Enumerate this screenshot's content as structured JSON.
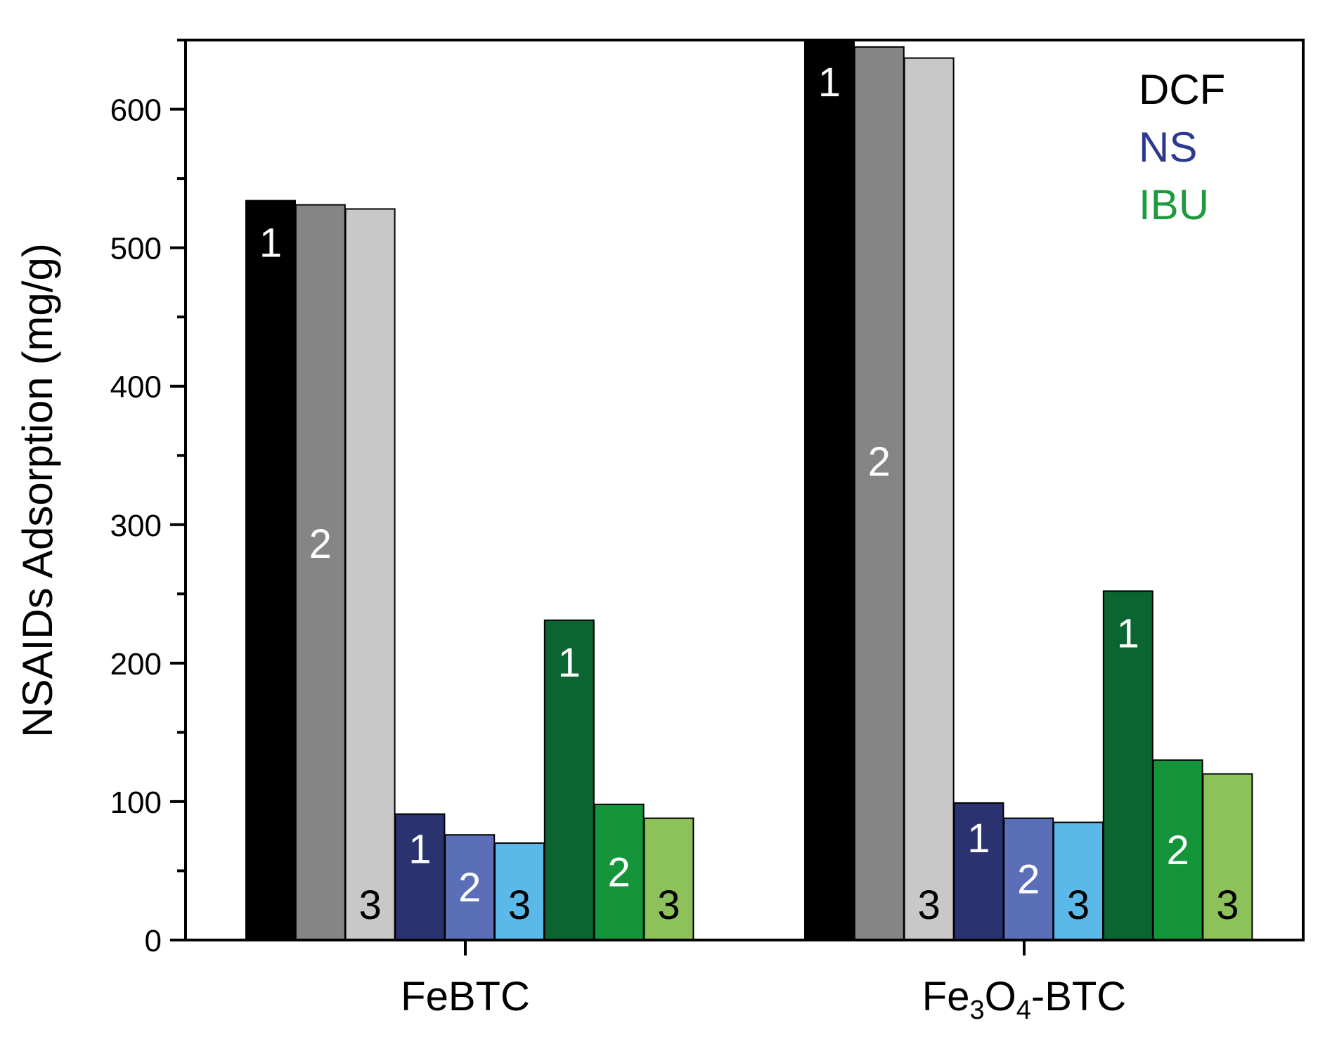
{
  "chart_data": {
    "type": "bar",
    "title": "",
    "xlabel": "",
    "ylabel": "NSAIDs Adsorption (mg/g)",
    "ylim": [
      0,
      650
    ],
    "yticks": [
      0,
      100,
      200,
      300,
      400,
      500,
      600
    ],
    "categories": [
      {
        "label": "FeBTC",
        "main": "FeBTC",
        "parts": [
          {
            "t": "FeBTC"
          }
        ]
      },
      {
        "label": "Fe3O4-BTC",
        "parts": [
          {
            "t": "Fe"
          },
          {
            "t": "3",
            "sub": true
          },
          {
            "t": "O"
          },
          {
            "t": "4",
            "sub": true
          },
          {
            "t": "-BTC"
          }
        ]
      }
    ],
    "series": [
      {
        "name": "DCF-1",
        "drug": "DCF",
        "cycle": "1",
        "color": "#000000",
        "label_color": "#ffffff",
        "values": [
          534,
          650
        ]
      },
      {
        "name": "DCF-2",
        "drug": "DCF",
        "cycle": "2",
        "color": "#858585",
        "label_color": "#ffffff",
        "values": [
          531,
          645
        ]
      },
      {
        "name": "DCF-3",
        "drug": "DCF",
        "cycle": "3",
        "color": "#c8c8c8",
        "label_color": "#000000",
        "values": [
          528,
          637
        ]
      },
      {
        "name": "NS-1",
        "drug": "NS",
        "cycle": "1",
        "color": "#2b3270",
        "label_color": "#ffffff",
        "values": [
          91,
          99
        ]
      },
      {
        "name": "NS-2",
        "drug": "NS",
        "cycle": "2",
        "color": "#5a6fb8",
        "label_color": "#ffffff",
        "values": [
          76,
          88
        ]
      },
      {
        "name": "NS-3",
        "drug": "NS",
        "cycle": "3",
        "color": "#5ab9e9",
        "label_color": "#000000",
        "values": [
          70,
          85
        ]
      },
      {
        "name": "IBU-1",
        "drug": "IBU",
        "cycle": "1",
        "color": "#0b6530",
        "label_color": "#ffffff",
        "values": [
          231,
          252
        ]
      },
      {
        "name": "IBU-2",
        "drug": "IBU",
        "cycle": "2",
        "color": "#14953a",
        "label_color": "#ffffff",
        "values": [
          98,
          130
        ]
      },
      {
        "name": "IBU-3",
        "drug": "IBU",
        "cycle": "3",
        "color": "#8dc15a",
        "label_color": "#000000",
        "values": [
          88,
          120
        ]
      }
    ],
    "legend": {
      "placement": "top-right",
      "entries": [
        {
          "label": "DCF",
          "color": "#000000"
        },
        {
          "label": "NS",
          "color": "#2b3a8f"
        },
        {
          "label": "IBU",
          "color": "#1e9a3e"
        }
      ]
    }
  }
}
